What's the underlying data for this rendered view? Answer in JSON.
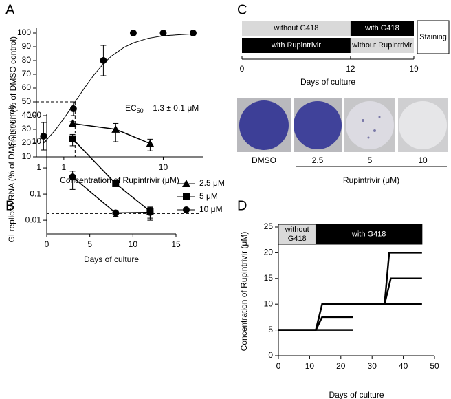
{
  "chart_data": [
    {
      "type": "scatter",
      "label": "A",
      "xlabel": "Concentration of Rupintrivir (μM)",
      "ylabel": "Inhibition (% of DMSO control)",
      "xscale": "log",
      "xlim": [
        0.53,
        25
      ],
      "xticks": [
        1,
        10
      ],
      "ylim": [
        10,
        104
      ],
      "yticks": [
        10,
        20,
        30,
        40,
        50,
        60,
        70,
        80,
        90,
        100
      ],
      "color": "#000000",
      "x": [
        0.625,
        1.25,
        2.5,
        5,
        10,
        20
      ],
      "values": [
        25,
        45,
        80,
        100,
        100,
        100
      ],
      "errors": [
        10,
        5,
        11,
        0,
        0,
        0
      ],
      "fit": {
        "x": [
          0.625,
          0.8,
          1,
          1.3,
          1.6,
          2,
          2.5,
          3,
          4,
          5,
          7,
          10,
          20
        ],
        "values": [
          19.9,
          28.5,
          37.8,
          50,
          59.7,
          69.4,
          77.6,
          83.1,
          89.4,
          92.8,
          96.1,
          98,
          99.4
        ]
      },
      "reference": {
        "x": 1.3,
        "y": 50
      },
      "annotation": {
        "text": "EC",
        "subscript": "50",
        "text_after": " = 1.3 ± 0.1 μM"
      }
    },
    {
      "type": "line",
      "label": "B",
      "xlabel": "Days of culture",
      "ylabel": "GI replicon RNA (% of DMSO control)",
      "xlim": [
        0,
        15
      ],
      "xticks": [
        0,
        5,
        10,
        15
      ],
      "yscale": "log",
      "ylim": [
        0.003,
        120
      ],
      "yticks": [
        0.01,
        0.1,
        1,
        10,
        100
      ],
      "color": "#000000",
      "series": [
        {
          "name": "2.5 μM",
          "marker": "triangle",
          "x": [
            3,
            8,
            12
          ],
          "values": [
            50,
            30,
            8.5
          ],
          "errors": [
            8,
            20,
            4
          ]
        },
        {
          "name": "5 μM",
          "marker": "square",
          "x": [
            3,
            8,
            12
          ],
          "values": [
            13,
            0.25,
            0.022
          ],
          "errors": [
            6,
            0,
            0.01
          ]
        },
        {
          "name": "10 μM",
          "marker": "circle",
          "x": [
            3,
            8,
            12
          ],
          "values": [
            0.45,
            0.019,
            0.02
          ],
          "errors": [
            0.3,
            0.005,
            0.01
          ]
        }
      ],
      "reference_y": 0.018
    },
    {
      "type": "step",
      "label": "D",
      "xlabel": "Days of culture",
      "ylabel": "Concentration of Rupintrivir (μM)",
      "xlim": [
        0,
        50
      ],
      "xticks": [
        0,
        10,
        20,
        30,
        40,
        50
      ],
      "ylim": [
        0,
        25
      ],
      "yticks": [
        0,
        5,
        10,
        15,
        20,
        25
      ],
      "color": "#000000",
      "series": [
        {
          "x": [
            0,
            24
          ],
          "values": [
            5,
            5
          ]
        },
        {
          "x": [
            0,
            12,
            14,
            24
          ],
          "values": [
            5,
            5,
            7.5,
            7.5
          ]
        },
        {
          "x": [
            0,
            12,
            14,
            46
          ],
          "values": [
            5,
            5,
            10,
            10
          ]
        },
        {
          "x": [
            34,
            36,
            46
          ],
          "values": [
            10,
            15,
            15
          ]
        },
        {
          "x": [
            34,
            35.5,
            46
          ],
          "values": [
            10,
            20,
            20
          ]
        }
      ],
      "phases": [
        {
          "label": [
            "without",
            "G418"
          ],
          "start": 0,
          "end": 12,
          "color": "#d9d9d9"
        },
        {
          "label": [
            "with G418"
          ],
          "start": 12,
          "end": 46,
          "color": "#000000"
        }
      ]
    }
  ],
  "panel_c": {
    "label": "C",
    "rows": [
      [
        {
          "label": "without G418",
          "start": 0,
          "end": 12,
          "color": "#d9d9d9"
        },
        {
          "label": "with G418",
          "start": 12,
          "end": 19,
          "color": "#000000"
        }
      ],
      [
        {
          "label": "with Rupintrivir",
          "start": 0,
          "end": 12,
          "color": "#000000"
        },
        {
          "label": "without Rupintrivir",
          "start": 12,
          "end": 19,
          "color": "#d9d9d9"
        }
      ]
    ],
    "final_box": "Staining",
    "xlim": [
      0,
      19
    ],
    "xticks": [
      0,
      12,
      19
    ],
    "xlabel": "Days of culture",
    "wells": [
      "DMSO",
      "2.5",
      "5",
      "10"
    ],
    "group_label": "Rupintrivir (μM)"
  }
}
